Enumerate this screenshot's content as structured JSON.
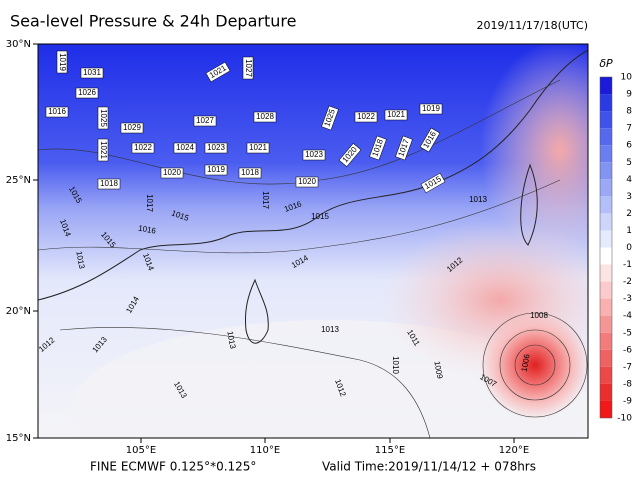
{
  "header": {
    "title": "Sea-level Pressure & 24h Departure",
    "timestamp": "2019/11/17/18(UTC)"
  },
  "map": {
    "lat_labels": [
      "30°N",
      "25°N",
      "20°N",
      "15°N"
    ],
    "lon_labels": [
      "105°E",
      "110°E",
      "115°E",
      "120°E"
    ],
    "isobar_labels": [
      "1019",
      "1031",
      "1026",
      "1016",
      "1025",
      "1029",
      "1021",
      "1027",
      "1027",
      "1028",
      "1025",
      "1022",
      "1021",
      "1019",
      "1021",
      "1022",
      "1024",
      "1023",
      "1021",
      "1023",
      "1020",
      "1018",
      "1017",
      "1016",
      "1020",
      "1019",
      "1018",
      "1017",
      "1016",
      "1020",
      "1018",
      "1015",
      "1017",
      "1015",
      "1016",
      "1014",
      "1015",
      "1013",
      "1014",
      "1015",
      "1015",
      "1013",
      "1012",
      "1014",
      "1014",
      "1013",
      "1012",
      "1013",
      "1013",
      "1011",
      "1010",
      "1009",
      "1008",
      "1007",
      "1006",
      "1012",
      "1013"
    ]
  },
  "colorbar": {
    "title": "δP",
    "labels": [
      "10",
      "9",
      "8",
      "7",
      "6",
      "5",
      "4",
      "3",
      "2",
      "1",
      "0",
      "-1",
      "-2",
      "-3",
      "-4",
      "-5",
      "-6",
      "-7",
      "-8",
      "-9",
      "-10"
    ]
  },
  "footer": {
    "model": "FINE ECMWF 0.125°*0.125°",
    "valid_time": "Valid Time:2019/11/14/12 + 078hrs"
  }
}
